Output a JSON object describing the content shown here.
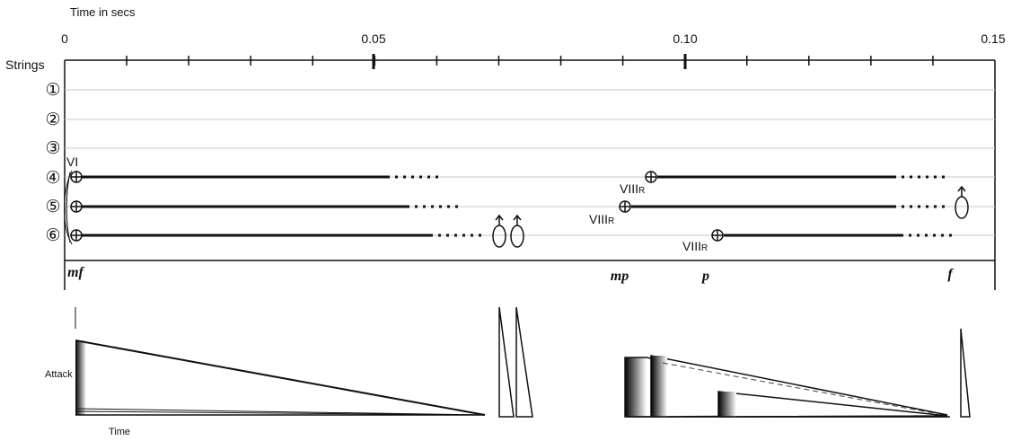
{
  "header": {
    "time_axis_title": "Time in secs",
    "ticks": [
      {
        "label": "0",
        "t": 0
      },
      {
        "label": "0.05",
        "t": 0.05
      },
      {
        "label": "0.10",
        "t": 0.1
      },
      {
        "label": "0.15",
        "t": 0.15
      }
    ],
    "minor_tick_step": 0.01
  },
  "strings": {
    "title": "Strings",
    "labels": [
      "①",
      "②",
      "③",
      "④",
      "⑤",
      "⑥"
    ]
  },
  "positions": {
    "vi": "VI",
    "viii_main": "VIII",
    "viii_sub": "R"
  },
  "dynamics": {
    "mf": "mf",
    "mp": "mp",
    "p": "p",
    "f": "f"
  },
  "envelope": {
    "attack_label": "Attack",
    "time_label": "Time"
  },
  "notes": [
    {
      "string": 4,
      "onset": 0.002,
      "end": 0.052,
      "fade_end": 0.06,
      "position": "VI"
    },
    {
      "string": 5,
      "onset": 0.002,
      "end": 0.056,
      "fade_end": 0.063
    },
    {
      "string": 6,
      "onset": 0.002,
      "end": 0.059,
      "fade_end": 0.067
    },
    {
      "string": 4,
      "onset": 0.095,
      "end": 0.134,
      "fade_end": 0.143,
      "position": "VIIIR"
    },
    {
      "string": 5,
      "onset": 0.091,
      "end": 0.134,
      "fade_end": 0.143,
      "position": "VIIIR"
    },
    {
      "string": 6,
      "onset": 0.106,
      "end": 0.135,
      "fade_end": 0.144,
      "position": "VIIIR"
    }
  ]
}
